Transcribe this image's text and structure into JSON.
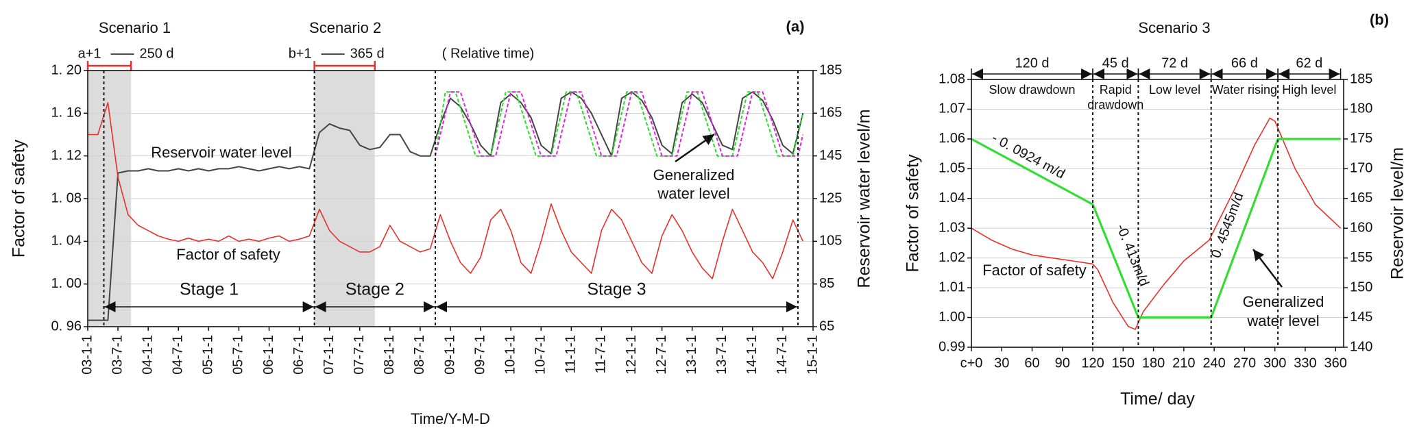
{
  "chart_data": [
    {
      "type": "line",
      "panel_label": "(a)",
      "x_title": "Time/Y-M-D",
      "y_title": "Factor of safety",
      "y2_title": "Reservoir  water level/m",
      "xlim": [
        0,
        144
      ],
      "xtick_rotation": 90,
      "xticks": [
        {
          "value": 0,
          "label": "03-1-1"
        },
        {
          "value": 6,
          "label": "03-7-1"
        },
        {
          "value": 12,
          "label": "04-1-1"
        },
        {
          "value": 18,
          "label": "04-7-1"
        },
        {
          "value": 24,
          "label": "05-1-1"
        },
        {
          "value": 30,
          "label": "05-7-1"
        },
        {
          "value": 36,
          "label": "06-1-1"
        },
        {
          "value": 42,
          "label": "06-7-1"
        },
        {
          "value": 48,
          "label": "07-1-1"
        },
        {
          "value": 54,
          "label": "07-7-1"
        },
        {
          "value": 60,
          "label": "08-1-1"
        },
        {
          "value": 66,
          "label": "08-7-1"
        },
        {
          "value": 72,
          "label": "09-1-1"
        },
        {
          "value": 78,
          "label": "09-7-1"
        },
        {
          "value": 84,
          "label": "10-1-1"
        },
        {
          "value": 90,
          "label": "10-7-1"
        },
        {
          "value": 96,
          "label": "11-1-1"
        },
        {
          "value": 102,
          "label": "11-7-1"
        },
        {
          "value": 108,
          "label": "12-1-1"
        },
        {
          "value": 114,
          "label": "12-7-1"
        },
        {
          "value": 120,
          "label": "13-1-1"
        },
        {
          "value": 126,
          "label": "13-7-1"
        },
        {
          "value": 132,
          "label": "14-1-1"
        },
        {
          "value": 138,
          "label": "14-7-1"
        },
        {
          "value": 144,
          "label": "15-1-1"
        }
      ],
      "ylim": [
        0.96,
        1.2
      ],
      "yticks": [
        {
          "value": 0.96,
          "label": "0. 96"
        },
        {
          "value": 1.0,
          "label": "1. 00"
        },
        {
          "value": 1.04,
          "label": "1. 04"
        },
        {
          "value": 1.08,
          "label": "1. 08"
        },
        {
          "value": 1.12,
          "label": "1. 12"
        },
        {
          "value": 1.16,
          "label": "1. 16"
        },
        {
          "value": 1.2,
          "label": "1. 20"
        }
      ],
      "y2lim": [
        65,
        185
      ],
      "y2ticks": [
        65,
        85,
        105,
        125,
        145,
        165,
        185
      ],
      "grid": true,
      "x": [
        0,
        2,
        4,
        6,
        8,
        10,
        12,
        14,
        16,
        18,
        20,
        22,
        24,
        26,
        28,
        30,
        32,
        34,
        36,
        38,
        40,
        42,
        44,
        46,
        48,
        50,
        52,
        54,
        56,
        58,
        60,
        62,
        64,
        66,
        68,
        70,
        72,
        74,
        76,
        78,
        80,
        82,
        84,
        86,
        88,
        90,
        92,
        94,
        96,
        98,
        100,
        102,
        104,
        106,
        108,
        110,
        112,
        114,
        116,
        118,
        120,
        122,
        124,
        126,
        128,
        130,
        132,
        134,
        136,
        138,
        140,
        142
      ],
      "series": [
        {
          "color": "#444444",
          "axis": "y2",
          "width": 2,
          "values": [
            68,
            68,
            68,
            137,
            138,
            138,
            139,
            138,
            138,
            139,
            138,
            139,
            138,
            139,
            139,
            140,
            139,
            138,
            139,
            140,
            139,
            140,
            139,
            156,
            160,
            158,
            157,
            150,
            148,
            149,
            155,
            155,
            147,
            145,
            145,
            160,
            172,
            168,
            160,
            150,
            145,
            170,
            174,
            170,
            163,
            150,
            146,
            172,
            175,
            172,
            165,
            155,
            145,
            172,
            175,
            171,
            163,
            150,
            146,
            170,
            174,
            170,
            160,
            150,
            148,
            172,
            175,
            171,
            162,
            150,
            146,
            165
          ]
        },
        {
          "color": "#e8302a",
          "width": 1.6,
          "values": [
            1.14,
            1.14,
            1.17,
            1.1,
            1.065,
            1.055,
            1.05,
            1.045,
            1.042,
            1.04,
            1.043,
            1.04,
            1.042,
            1.04,
            1.045,
            1.04,
            1.042,
            1.04,
            1.043,
            1.045,
            1.04,
            1.042,
            1.045,
            1.07,
            1.05,
            1.04,
            1.035,
            1.03,
            1.03,
            1.035,
            1.055,
            1.04,
            1.035,
            1.03,
            1.033,
            1.065,
            1.04,
            1.02,
            1.01,
            1.025,
            1.06,
            1.07,
            1.05,
            1.02,
            1.01,
            1.04,
            1.075,
            1.05,
            1.03,
            1.02,
            1.01,
            1.05,
            1.07,
            1.06,
            1.04,
            1.02,
            1.01,
            1.045,
            1.065,
            1.05,
            1.03,
            1.015,
            1.005,
            1.04,
            1.07,
            1.05,
            1.03,
            1.02,
            1.005,
            1.03,
            1.06,
            1.04
          ]
        },
        {
          "color": "#22dd22",
          "axis": "y2",
          "dash": true,
          "width": 2,
          "x": [
            69,
            71,
            73,
            77,
            80,
            83,
            85,
            89,
            92,
            95,
            97,
            101,
            104,
            107,
            109,
            113,
            116,
            119,
            121,
            125,
            128,
            131,
            133,
            137,
            140,
            142
          ],
          "values": [
            145,
            175,
            175,
            145,
            145,
            175,
            175,
            145,
            145,
            175,
            175,
            145,
            145,
            175,
            175,
            145,
            145,
            175,
            175,
            145,
            145,
            175,
            175,
            145,
            145,
            165
          ]
        },
        {
          "color": "#e020e0",
          "axis": "y2",
          "dash": true,
          "width": 2,
          "x": [
            69,
            72,
            74,
            78,
            81,
            84,
            86,
            90,
            93,
            96,
            98,
            102,
            105,
            108,
            110,
            114,
            117,
            120,
            122,
            126,
            129,
            132,
            134,
            138,
            141,
            142
          ],
          "values": [
            145,
            175,
            175,
            145,
            145,
            175,
            175,
            145,
            145,
            175,
            175,
            145,
            145,
            175,
            175,
            145,
            145,
            175,
            175,
            145,
            145,
            175,
            175,
            145,
            145,
            155
          ]
        }
      ],
      "scenarios": [
        {
          "title": "Scenario 1",
          "start_label": "a+1",
          "end_label": "250 d",
          "shade": [
            0,
            8.6
          ],
          "mark": 3.2
        },
        {
          "title": "Scenario 2",
          "start_label": "b+1",
          "end_label": "365 d",
          "shade": [
            45,
            57
          ],
          "mark": 45
        }
      ],
      "relative_time_label": "( Relative time)",
      "stages": [
        {
          "label": "Stage 1",
          "start": 3.2,
          "end": 45
        },
        {
          "label": "Stage 2",
          "start": 45,
          "end": 69
        },
        {
          "label": "Stage 3",
          "start": 69,
          "end": 141
        }
      ],
      "annotations": [
        {
          "lines": [
            "Reservoir water  level"
          ],
          "color": "#222222"
        },
        {
          "lines": [
            "Factor of safety"
          ],
          "color": "#e8302a"
        },
        {
          "lines": [
            "Generalized",
            "water level"
          ],
          "color": "#111111"
        }
      ]
    },
    {
      "type": "line",
      "title": "Scenario 3",
      "panel_label": "(b)",
      "x_title": "Time/ day",
      "y_title": "Factor of safety",
      "y2_title": "Reservoir level/m",
      "xlim": [
        0,
        368
      ],
      "xticks": [
        {
          "value": 0,
          "label": "c+0"
        },
        30,
        60,
        90,
        120,
        150,
        180,
        210,
        240,
        270,
        300,
        330,
        360
      ],
      "ylim": [
        0.99,
        1.08
      ],
      "yticks": [
        0.99,
        {
          "value": 1.0,
          "label": "1.00"
        },
        1.01,
        1.02,
        1.03,
        1.04,
        1.05,
        1.06,
        1.07,
        1.08
      ],
      "y2lim": [
        140,
        185
      ],
      "y2ticks": [
        140,
        145,
        150,
        155,
        160,
        165,
        170,
        175,
        180,
        185
      ],
      "grid": true,
      "series": [
        {
          "color": "#e8302a",
          "width": 1.6,
          "x": [
            0,
            20,
            40,
            60,
            80,
            100,
            120,
            125,
            140,
            155,
            162,
            170,
            190,
            210,
            235,
            260,
            280,
            295,
            300,
            320,
            340,
            365
          ],
          "values": [
            1.03,
            1.026,
            1.023,
            1.021,
            1.02,
            1.019,
            1.018,
            1.016,
            1.005,
            0.997,
            0.996,
            1.002,
            1.011,
            1.019,
            1.026,
            1.043,
            1.058,
            1.067,
            1.066,
            1.05,
            1.038,
            1.03
          ]
        },
        {
          "color": "#33dd33",
          "axis": "y2",
          "width": 3.2,
          "x": [
            0,
            120,
            165,
            237,
            303,
            365
          ],
          "values": [
            175,
            164,
            145,
            145,
            175,
            175
          ]
        }
      ],
      "slope_labels": [
        "- 0. 0924 m/d",
        "-0. 413m/d",
        "0. 4545m/d"
      ],
      "phases": [
        {
          "duration_label": "120 d",
          "name_lines": [
            "Slow drawdown"
          ],
          "start": 0,
          "end": 120
        },
        {
          "duration_label": "45 d",
          "name_lines": [
            "Rapid",
            "drawdown"
          ],
          "start": 120,
          "end": 165
        },
        {
          "duration_label": "72 d",
          "name_lines": [
            "Low level"
          ],
          "start": 165,
          "end": 237
        },
        {
          "duration_label": "66 d",
          "name_lines": [
            "Water rising"
          ],
          "start": 237,
          "end": 303
        },
        {
          "duration_label": "62 d",
          "name_lines": [
            "High level"
          ],
          "start": 303,
          "end": 365
        }
      ],
      "annotations": [
        {
          "lines": [
            "Factor of safety"
          ],
          "color": "#e8302a"
        },
        {
          "lines": [
            "Generalized",
            "water level"
          ],
          "color": "#111111"
        }
      ]
    }
  ]
}
